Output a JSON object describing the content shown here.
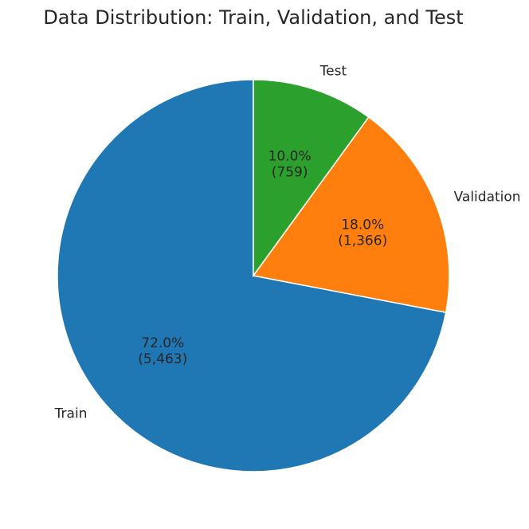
{
  "chart_data": {
    "type": "pie",
    "title": "Data Distribution: Train, Validation, and Test",
    "categories": [
      "Train",
      "Validation",
      "Test"
    ],
    "values": [
      5463,
      1366,
      759
    ],
    "value_labels": [
      "(5,463)",
      "(1,366)",
      "(759)"
    ],
    "percent_labels": [
      "72.0%",
      "18.0%",
      "10.0%"
    ],
    "colors": [
      "#1f77b4",
      "#ff7f0e",
      "#2ca02c"
    ],
    "start_angle_deg": 90,
    "direction": "counterclockwise",
    "legend": "none"
  }
}
